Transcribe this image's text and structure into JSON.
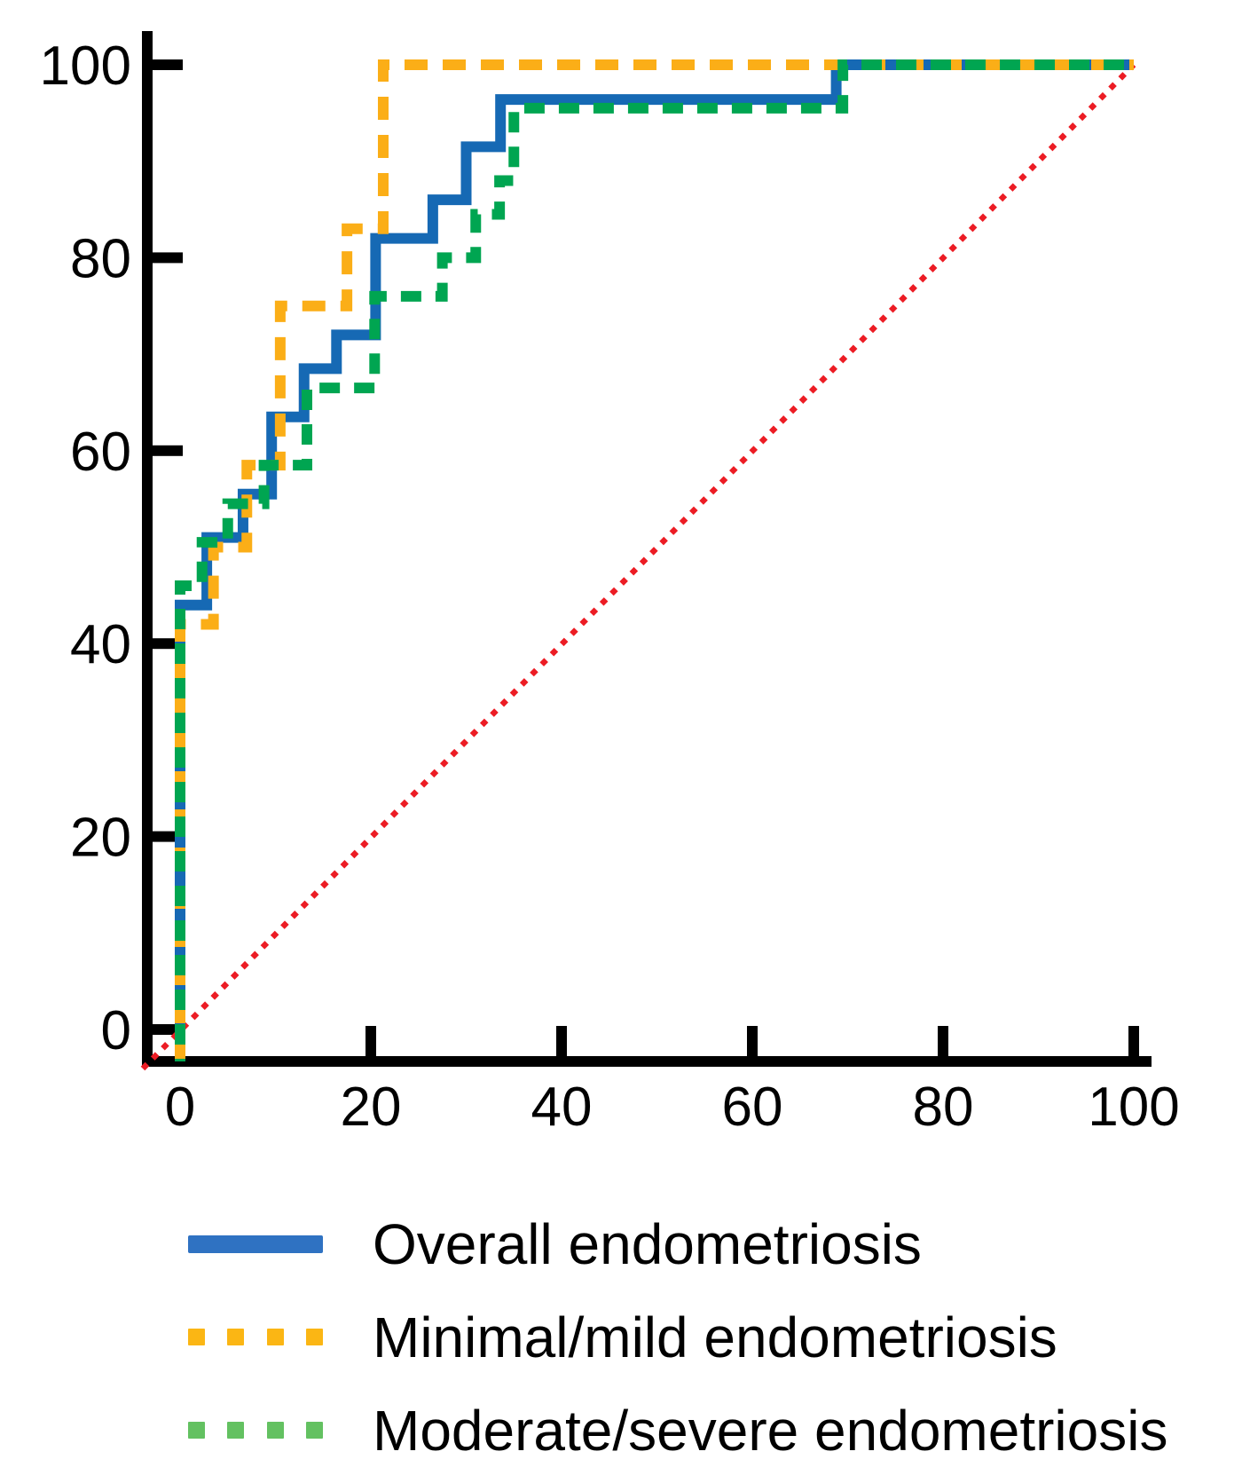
{
  "figure": {
    "background": "#ffffff",
    "description": "ROC curves for endometriosis prediction"
  },
  "chart_data": {
    "type": "line",
    "subtype": "roc-step-curves",
    "title": "",
    "xlabel": "",
    "ylabel": "",
    "xlim": [
      0,
      100
    ],
    "ylim": [
      0,
      100
    ],
    "x_ticks": [
      0,
      20,
      40,
      60,
      80,
      100
    ],
    "y_ticks": [
      0,
      20,
      40,
      60,
      80,
      100
    ],
    "grid": false,
    "legend_position": "below",
    "axis_color": "#000000",
    "series": [
      {
        "name": "Overall endometriosis",
        "color": "#1669B4",
        "style": "solid",
        "points": [
          [
            0,
            0
          ],
          [
            0,
            44
          ],
          [
            2.8,
            44
          ],
          [
            2.8,
            51
          ],
          [
            6.6,
            51
          ],
          [
            6.6,
            55.5
          ],
          [
            9.6,
            55.5
          ],
          [
            9.6,
            63.5
          ],
          [
            13,
            63.5
          ],
          [
            13,
            68.5
          ],
          [
            16.4,
            68.5
          ],
          [
            16.4,
            72
          ],
          [
            20.5,
            72
          ],
          [
            20.5,
            82
          ],
          [
            26.5,
            82
          ],
          [
            26.5,
            86
          ],
          [
            30,
            86
          ],
          [
            30,
            91.5
          ],
          [
            33.6,
            91.5
          ],
          [
            33.6,
            96.4
          ],
          [
            68.8,
            96.4
          ],
          [
            68.8,
            100
          ],
          [
            100,
            100
          ]
        ]
      },
      {
        "name": "Minimal/mild endometriosis",
        "color": "#FBAE17",
        "style": "dashed",
        "points": [
          [
            0,
            0
          ],
          [
            0,
            42
          ],
          [
            3.5,
            42
          ],
          [
            3.5,
            50
          ],
          [
            7,
            50
          ],
          [
            7,
            58.5
          ],
          [
            10.5,
            58.5
          ],
          [
            10.5,
            75
          ],
          [
            17.5,
            75
          ],
          [
            17.5,
            83
          ],
          [
            21.3,
            83
          ],
          [
            21.3,
            100
          ],
          [
            100,
            100
          ]
        ]
      },
      {
        "name": "Moderate/severe endometriosis",
        "color": "#00A551",
        "style": "dashed",
        "points": [
          [
            0,
            0
          ],
          [
            0,
            46
          ],
          [
            2.3,
            46
          ],
          [
            2.3,
            50.5
          ],
          [
            5,
            50.5
          ],
          [
            5,
            54.5
          ],
          [
            8.8,
            54.5
          ],
          [
            8.8,
            58.5
          ],
          [
            13.3,
            58.5
          ],
          [
            13.3,
            66.5
          ],
          [
            20.4,
            66.5
          ],
          [
            20.4,
            76
          ],
          [
            27.5,
            76
          ],
          [
            27.5,
            80
          ],
          [
            31,
            80
          ],
          [
            31,
            84.5
          ],
          [
            33.5,
            84.5
          ],
          [
            33.5,
            88
          ],
          [
            35,
            88
          ],
          [
            35,
            95.5
          ],
          [
            69.5,
            95.5
          ],
          [
            69.5,
            100
          ],
          [
            100,
            100
          ]
        ]
      }
    ],
    "reference_line": {
      "name": "chance diagonal",
      "color": "#EC1C24",
      "style": "dotted",
      "points": [
        [
          0,
          0
        ],
        [
          100,
          100
        ]
      ]
    }
  },
  "legend": {
    "items": [
      {
        "label": "Overall endometriosis",
        "color": "#2F72C2",
        "style": "solid"
      },
      {
        "label": "Minimal/mild endometriosis",
        "color": "#FBB614",
        "style": "dashed"
      },
      {
        "label": "Moderate/severe endometriosis",
        "color": "#63C161",
        "style": "dashed"
      }
    ]
  }
}
